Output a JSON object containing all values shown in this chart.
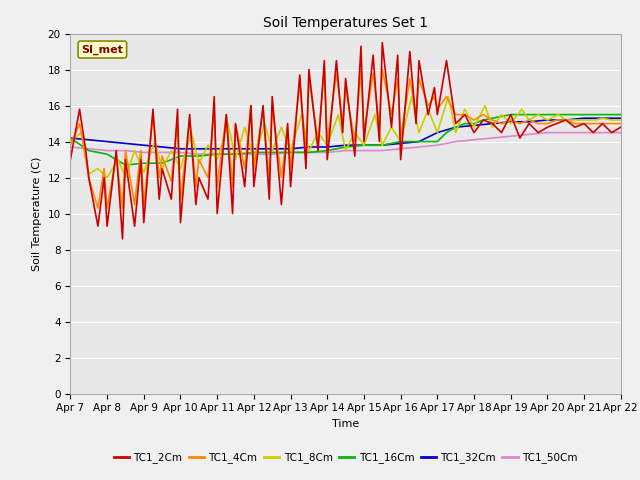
{
  "title": "Soil Temperatures Set 1",
  "xlabel": "Time",
  "ylabel": "Soil Temperature (C)",
  "ylim": [
    0,
    20
  ],
  "xlim": [
    0,
    15
  ],
  "annotation": "SI_met",
  "fig_bg": "#f0f0f0",
  "plot_bg": "#e8e8e8",
  "grid_color": "#ffffff",
  "series_colors": {
    "TC1_2Cm": "#cc0000",
    "TC1_4Cm": "#ff8800",
    "TC1_8Cm": "#cccc00",
    "TC1_16Cm": "#00bb00",
    "TC1_32Cm": "#0000cc",
    "TC1_50Cm": "#dd88cc"
  },
  "x_tick_labels": [
    "Apr 7",
    "Apr 8",
    "Apr 9",
    "Apr 10",
    "Apr 11",
    "Apr 12",
    "Apr 13",
    "Apr 14",
    "Apr 15",
    "Apr 16",
    "Apr 17",
    "Apr 18",
    "Apr 19",
    "Apr 20",
    "Apr 21",
    "Apr 22"
  ],
  "x_tick_positions": [
    0,
    1,
    2,
    3,
    4,
    5,
    6,
    7,
    8,
    9,
    10,
    11,
    12,
    13,
    14,
    15
  ],
  "TC1_2Cm_x": [
    0.0,
    0.25,
    0.42,
    0.5,
    0.75,
    0.92,
    1.0,
    1.25,
    1.42,
    1.5,
    1.75,
    1.92,
    2.0,
    2.25,
    2.42,
    2.5,
    2.75,
    2.92,
    3.0,
    3.25,
    3.42,
    3.5,
    3.75,
    3.92,
    4.0,
    4.25,
    4.42,
    4.5,
    4.75,
    4.92,
    5.0,
    5.25,
    5.42,
    5.5,
    5.75,
    5.92,
    6.0,
    6.25,
    6.42,
    6.5,
    6.75,
    6.92,
    7.0,
    7.25,
    7.42,
    7.5,
    7.75,
    7.92,
    8.0,
    8.25,
    8.42,
    8.5,
    8.75,
    8.92,
    9.0,
    9.25,
    9.42,
    9.5,
    9.75,
    9.92,
    10.0,
    10.25,
    10.5,
    10.75,
    11.0,
    11.25,
    11.5,
    11.75,
    12.0,
    12.25,
    12.5,
    12.75,
    13.0,
    13.25,
    13.5,
    13.75,
    14.0,
    14.25,
    14.5,
    14.75,
    15.0
  ],
  "TC1_2Cm_y": [
    13.0,
    15.8,
    13.5,
    12.0,
    9.3,
    12.0,
    9.3,
    13.5,
    8.6,
    13.0,
    9.3,
    13.0,
    9.5,
    15.8,
    10.8,
    12.5,
    10.8,
    15.8,
    9.5,
    15.5,
    10.5,
    12.0,
    10.8,
    16.5,
    10.0,
    15.5,
    10.0,
    15.0,
    11.5,
    16.0,
    11.5,
    16.0,
    10.8,
    16.5,
    10.5,
    15.0,
    11.5,
    17.7,
    12.5,
    18.0,
    13.5,
    18.5,
    13.0,
    18.5,
    14.5,
    17.5,
    13.2,
    19.3,
    14.0,
    18.8,
    14.0,
    19.5,
    14.8,
    18.8,
    13.0,
    19.0,
    15.0,
    18.5,
    15.5,
    17.0,
    15.5,
    18.5,
    15.0,
    15.5,
    14.5,
    15.2,
    15.0,
    14.5,
    15.5,
    14.2,
    15.0,
    14.5,
    14.8,
    15.0,
    15.2,
    14.8,
    15.0,
    14.5,
    15.0,
    14.5,
    14.8
  ],
  "TC1_4Cm_x": [
    0.0,
    0.25,
    0.42,
    0.5,
    0.75,
    0.92,
    1.0,
    1.25,
    1.42,
    1.5,
    1.75,
    1.92,
    2.0,
    2.25,
    2.42,
    2.5,
    2.75,
    2.92,
    3.0,
    3.25,
    3.42,
    3.5,
    3.75,
    3.92,
    4.0,
    4.25,
    4.42,
    4.5,
    4.75,
    4.92,
    5.0,
    5.25,
    5.42,
    5.5,
    5.75,
    5.92,
    6.0,
    6.25,
    6.42,
    6.5,
    6.75,
    6.92,
    7.0,
    7.25,
    7.42,
    7.5,
    7.75,
    7.92,
    8.0,
    8.25,
    8.42,
    8.5,
    8.75,
    8.92,
    9.0,
    9.25,
    9.42,
    9.5,
    9.75,
    9.92,
    10.0,
    10.25,
    10.5,
    10.75,
    11.0,
    11.25,
    11.5,
    11.75,
    12.0,
    12.25,
    12.5,
    12.75,
    13.0,
    13.25,
    13.5,
    13.75,
    14.0,
    14.25,
    14.5,
    14.75,
    15.0
  ],
  "TC1_4Cm_y": [
    13.8,
    15.0,
    13.0,
    12.0,
    10.3,
    12.5,
    10.3,
    13.2,
    10.3,
    13.5,
    10.5,
    13.5,
    10.5,
    15.5,
    12.0,
    13.2,
    11.8,
    15.0,
    10.8,
    15.2,
    11.5,
    13.0,
    12.0,
    15.8,
    11.5,
    15.5,
    11.5,
    15.0,
    12.5,
    16.0,
    12.5,
    15.8,
    11.8,
    16.0,
    12.0,
    14.8,
    12.5,
    17.3,
    13.5,
    17.5,
    14.0,
    18.0,
    14.0,
    17.8,
    15.0,
    17.0,
    14.0,
    18.0,
    14.5,
    17.8,
    14.8,
    18.0,
    15.5,
    17.5,
    14.2,
    17.5,
    15.5,
    17.5,
    16.0,
    16.5,
    15.8,
    16.5,
    15.5,
    15.5,
    15.2,
    15.5,
    15.2,
    15.0,
    15.2,
    15.0,
    15.2,
    15.0,
    15.0,
    15.2,
    15.2,
    15.0,
    15.0,
    15.0,
    15.0,
    15.0,
    15.0
  ],
  "TC1_8Cm_x": [
    0.0,
    0.3,
    0.5,
    0.75,
    1.0,
    1.3,
    1.5,
    1.75,
    2.0,
    2.3,
    2.5,
    2.75,
    3.0,
    3.3,
    3.5,
    3.75,
    4.0,
    4.3,
    4.5,
    4.75,
    5.0,
    5.3,
    5.5,
    5.75,
    6.0,
    6.3,
    6.5,
    6.75,
    7.0,
    7.3,
    7.5,
    7.75,
    8.0,
    8.3,
    8.5,
    8.75,
    9.0,
    9.3,
    9.5,
    9.75,
    10.0,
    10.3,
    10.5,
    10.75,
    11.0,
    11.3,
    11.5,
    11.75,
    12.0,
    12.3,
    12.5,
    12.75,
    13.0,
    13.3,
    13.5,
    13.75,
    14.0,
    14.3,
    14.5,
    14.75,
    15.0
  ],
  "TC1_8Cm_y": [
    14.0,
    14.5,
    12.2,
    12.5,
    12.0,
    13.0,
    12.0,
    13.5,
    12.3,
    14.0,
    12.5,
    13.5,
    12.5,
    14.5,
    12.8,
    13.8,
    13.0,
    15.0,
    13.0,
    14.8,
    13.0,
    15.0,
    13.5,
    14.8,
    13.5,
    15.5,
    13.5,
    14.5,
    13.8,
    15.5,
    13.5,
    14.5,
    13.8,
    15.5,
    13.8,
    14.8,
    14.0,
    16.5,
    14.5,
    15.8,
    14.5,
    16.5,
    14.5,
    15.8,
    14.8,
    16.0,
    14.8,
    15.5,
    15.0,
    15.8,
    15.2,
    15.5,
    15.2,
    15.5,
    15.2,
    15.2,
    15.2,
    15.2,
    15.3,
    15.2,
    15.2
  ],
  "TC1_16Cm_x": [
    0.0,
    0.5,
    1.0,
    1.5,
    2.0,
    2.5,
    3.0,
    3.5,
    4.0,
    4.5,
    5.0,
    5.5,
    6.0,
    6.5,
    7.0,
    7.5,
    8.0,
    8.5,
    9.0,
    9.5,
    10.0,
    10.25,
    10.5,
    10.75,
    11.0,
    11.25,
    11.5,
    11.75,
    12.0,
    12.5,
    13.0,
    13.5,
    14.0,
    14.5,
    15.0
  ],
  "TC1_16Cm_y": [
    14.2,
    13.5,
    13.3,
    12.7,
    12.8,
    12.8,
    13.2,
    13.2,
    13.3,
    13.3,
    13.4,
    13.4,
    13.4,
    13.4,
    13.5,
    13.7,
    13.8,
    13.8,
    14.0,
    14.0,
    14.0,
    14.5,
    14.8,
    15.0,
    15.0,
    15.2,
    15.3,
    15.4,
    15.5,
    15.5,
    15.5,
    15.5,
    15.5,
    15.5,
    15.5
  ],
  "TC1_32Cm_x": [
    0.0,
    0.5,
    1.0,
    1.5,
    2.0,
    2.5,
    3.0,
    3.5,
    4.0,
    4.5,
    5.0,
    5.5,
    6.0,
    6.5,
    7.0,
    7.5,
    8.0,
    8.5,
    9.0,
    9.5,
    10.0,
    10.5,
    11.0,
    11.5,
    12.0,
    12.5,
    13.0,
    13.5,
    14.0,
    14.5,
    15.0
  ],
  "TC1_32Cm_y": [
    14.2,
    14.1,
    14.0,
    13.9,
    13.8,
    13.7,
    13.6,
    13.6,
    13.6,
    13.6,
    13.6,
    13.6,
    13.6,
    13.7,
    13.7,
    13.8,
    13.8,
    13.8,
    13.9,
    14.0,
    14.5,
    14.8,
    14.9,
    15.0,
    15.1,
    15.1,
    15.2,
    15.2,
    15.3,
    15.3,
    15.3
  ],
  "TC1_50Cm_x": [
    0.0,
    0.5,
    1.0,
    1.5,
    2.0,
    2.5,
    3.0,
    3.5,
    4.0,
    4.5,
    5.0,
    5.5,
    6.0,
    6.5,
    7.0,
    7.5,
    8.0,
    8.5,
    9.0,
    9.5,
    10.0,
    10.5,
    11.0,
    11.5,
    12.0,
    12.5,
    13.0,
    13.5,
    14.0,
    14.5,
    15.0
  ],
  "TC1_50Cm_y": [
    13.7,
    13.6,
    13.5,
    13.5,
    13.4,
    13.4,
    13.4,
    13.3,
    13.3,
    13.3,
    13.3,
    13.3,
    13.4,
    13.4,
    13.4,
    13.5,
    13.5,
    13.5,
    13.6,
    13.7,
    13.8,
    14.0,
    14.1,
    14.2,
    14.3,
    14.4,
    14.5,
    14.5,
    14.5,
    14.5,
    14.5
  ]
}
